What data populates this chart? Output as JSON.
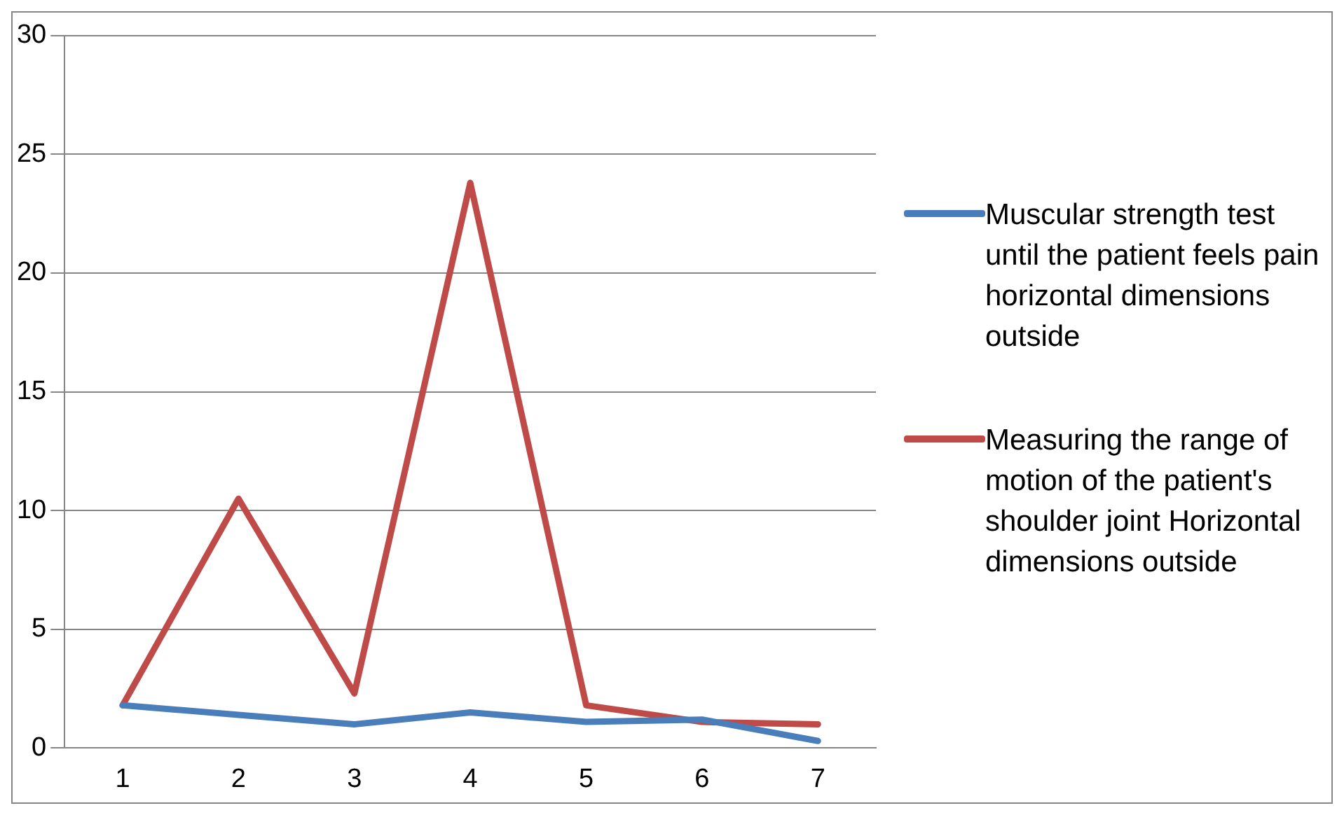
{
  "chart_data": {
    "type": "line",
    "categories": [
      "1",
      "2",
      "3",
      "4",
      "5",
      "6",
      "7"
    ],
    "series": [
      {
        "name": "Muscular strength test until the patient feels pain horizontal dimensions outside",
        "color": "#4a7ebb",
        "values": [
          1.8,
          1.4,
          1.0,
          1.5,
          1.1,
          1.2,
          0.3
        ]
      },
      {
        "name": "Measuring the range of motion of the patient's shoulder joint Horizontal dimensions outside",
        "color": "#be4b48",
        "values": [
          1.8,
          10.5,
          2.3,
          23.8,
          1.8,
          1.1,
          1.0
        ]
      }
    ],
    "ylim": [
      0,
      30
    ],
    "yticks": [
      0,
      5,
      10,
      15,
      20,
      25,
      30
    ],
    "grid": "y",
    "legend": "right",
    "marker": "none",
    "line_style": "solid"
  }
}
